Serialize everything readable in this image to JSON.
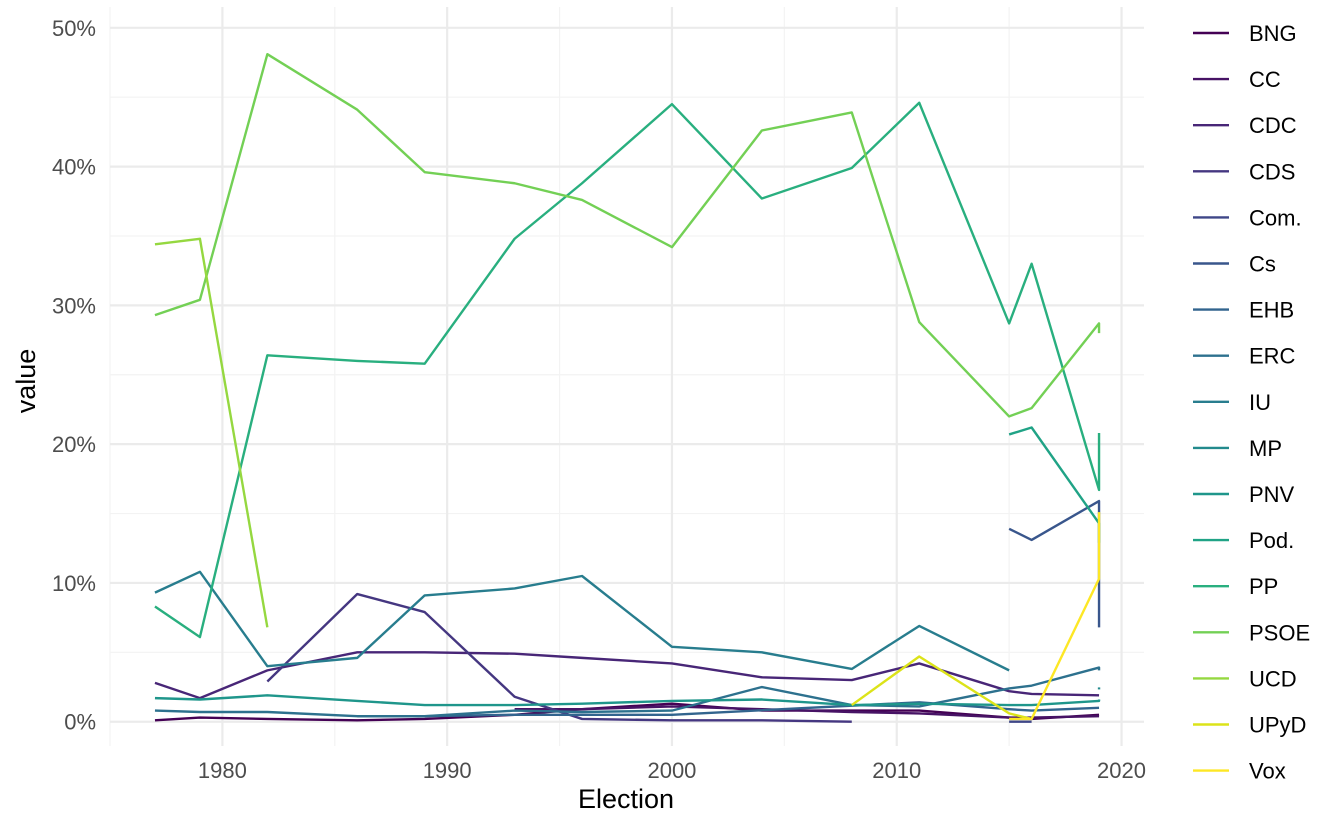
{
  "chart_data": {
    "type": "line",
    "title": "",
    "xlabel": "Election",
    "ylabel": "value",
    "xlim": [
      1975,
      2021
    ],
    "ylim": [
      0,
      50
    ],
    "x_ticks": [
      1980,
      1990,
      2000,
      2010,
      2020
    ],
    "y_ticks": [
      0,
      10,
      20,
      30,
      40,
      50
    ],
    "y_tick_format": "percent",
    "grid": true,
    "legend": "right",
    "series": [
      {
        "name": "BNG",
        "color": "#440154",
        "points": [
          [
            1977,
            0.1
          ],
          [
            1979,
            0.3
          ],
          [
            1982,
            0.2
          ],
          [
            1986,
            0.1
          ],
          [
            1989,
            0.2
          ],
          [
            1993,
            0.5
          ],
          [
            1996,
            0.9
          ],
          [
            2000,
            1.3
          ],
          [
            2004,
            0.8
          ],
          [
            2008,
            0.8
          ],
          [
            2011,
            0.8
          ],
          [
            2015,
            0.3
          ],
          [
            2016,
            0.2
          ],
          [
            2019,
            0.5
          ]
        ]
      },
      {
        "name": "CC",
        "color": "#471365",
        "points": [
          [
            1993,
            0.9
          ],
          [
            1996,
            0.9
          ],
          [
            2000,
            1.1
          ],
          [
            2004,
            0.9
          ],
          [
            2008,
            0.7
          ],
          [
            2011,
            0.6
          ],
          [
            2015,
            0.3
          ],
          [
            2016,
            0.3
          ],
          [
            2019,
            0.4
          ]
        ]
      },
      {
        "name": "CDC",
        "color": "#482677",
        "points": [
          [
            1977,
            2.8
          ],
          [
            1979,
            1.7
          ],
          [
            1982,
            3.7
          ],
          [
            1986,
            5.0
          ],
          [
            1989,
            5.0
          ],
          [
            1993,
            4.9
          ],
          [
            1996,
            4.6
          ],
          [
            2000,
            4.2
          ],
          [
            2004,
            3.2
          ],
          [
            2008,
            3.0
          ],
          [
            2011,
            4.2
          ],
          [
            2015,
            2.2
          ],
          [
            2016,
            2.0
          ],
          [
            2019,
            1.9
          ]
        ]
      },
      {
        "name": "CDS",
        "color": "#453781",
        "points": [
          [
            1982,
            2.9
          ],
          [
            1986,
            9.2
          ],
          [
            1989,
            7.9
          ],
          [
            1993,
            1.8
          ],
          [
            1996,
            0.2
          ],
          [
            2000,
            0.1
          ],
          [
            2004,
            0.1
          ],
          [
            2008,
            0.0
          ]
        ]
      },
      {
        "name": "Com.",
        "color": "#3F4788",
        "points": [
          [
            2015,
            0.0
          ],
          [
            2016,
            0.0
          ]
        ]
      },
      {
        "name": "Cs",
        "color": "#39568C",
        "points": [
          [
            2015,
            13.9
          ],
          [
            2016,
            13.1
          ],
          [
            2019,
            15.9
          ],
          [
            2019,
            6.8
          ]
        ]
      },
      {
        "name": "EHB",
        "color": "#32648E",
        "points": [
          [
            1986,
            0.4
          ],
          [
            1989,
            0.4
          ],
          [
            1993,
            0.5
          ],
          [
            2000,
            0.5
          ],
          [
            2011,
            1.4
          ],
          [
            2015,
            0.9
          ],
          [
            2016,
            0.8
          ],
          [
            2019,
            1.0
          ]
        ]
      },
      {
        "name": "ERC",
        "color": "#2D718E",
        "points": [
          [
            1977,
            0.8
          ],
          [
            1979,
            0.7
          ],
          [
            1982,
            0.7
          ],
          [
            1986,
            0.4
          ],
          [
            1989,
            0.4
          ],
          [
            1993,
            0.8
          ],
          [
            1996,
            0.7
          ],
          [
            2000,
            0.8
          ],
          [
            2004,
            2.5
          ],
          [
            2008,
            1.2
          ],
          [
            2011,
            1.1
          ],
          [
            2015,
            2.4
          ],
          [
            2016,
            2.6
          ],
          [
            2019,
            3.9
          ],
          [
            2019,
            3.7
          ]
        ]
      },
      {
        "name": "IU",
        "color": "#287D8E",
        "points": [
          [
            1977,
            9.3
          ],
          [
            1979,
            10.8
          ],
          [
            1982,
            4.0
          ],
          [
            1986,
            4.6
          ],
          [
            1989,
            9.1
          ],
          [
            1993,
            9.6
          ],
          [
            1996,
            10.5
          ],
          [
            2000,
            5.4
          ],
          [
            2004,
            5.0
          ],
          [
            2008,
            3.8
          ],
          [
            2011,
            6.9
          ],
          [
            2015,
            3.7
          ]
        ]
      },
      {
        "name": "MP",
        "color": "#238A8D",
        "points": [
          [
            2019,
            2.4
          ]
        ]
      },
      {
        "name": "PNV",
        "color": "#1F968B",
        "points": [
          [
            1977,
            1.7
          ],
          [
            1979,
            1.6
          ],
          [
            1982,
            1.9
          ],
          [
            1986,
            1.5
          ],
          [
            1989,
            1.2
          ],
          [
            1993,
            1.2
          ],
          [
            1996,
            1.3
          ],
          [
            2000,
            1.5
          ],
          [
            2004,
            1.6
          ],
          [
            2008,
            1.2
          ],
          [
            2011,
            1.3
          ],
          [
            2015,
            1.2
          ],
          [
            2016,
            1.2
          ],
          [
            2019,
            1.5
          ],
          [
            2019,
            1.6
          ]
        ]
      },
      {
        "name": "Pod.",
        "color": "#20A386",
        "points": [
          [
            2015,
            20.7
          ],
          [
            2016,
            21.2
          ],
          [
            2019,
            14.3
          ],
          [
            2019,
            12.9
          ]
        ]
      },
      {
        "name": "PP",
        "color": "#29AF7F",
        "points": [
          [
            1977,
            8.3
          ],
          [
            1979,
            6.1
          ],
          [
            1982,
            26.4
          ],
          [
            1986,
            26.0
          ],
          [
            1989,
            25.8
          ],
          [
            1993,
            34.8
          ],
          [
            1996,
            38.8
          ],
          [
            2000,
            44.5
          ],
          [
            2004,
            37.7
          ],
          [
            2008,
            39.9
          ],
          [
            2011,
            44.6
          ],
          [
            2015,
            28.7
          ],
          [
            2016,
            33.0
          ],
          [
            2019,
            16.7
          ],
          [
            2019,
            20.8
          ]
        ]
      },
      {
        "name": "PSOE",
        "color": "#73D055",
        "points": [
          [
            1977,
            29.3
          ],
          [
            1979,
            30.4
          ],
          [
            1982,
            48.1
          ],
          [
            1986,
            44.1
          ],
          [
            1989,
            39.6
          ],
          [
            1993,
            38.8
          ],
          [
            1996,
            37.6
          ],
          [
            2000,
            34.2
          ],
          [
            2004,
            42.6
          ],
          [
            2008,
            43.9
          ],
          [
            2011,
            28.8
          ],
          [
            2015,
            22.0
          ],
          [
            2016,
            22.6
          ],
          [
            2019,
            28.7
          ],
          [
            2019,
            28.0
          ]
        ]
      },
      {
        "name": "UCD",
        "color": "#95D840",
        "points": [
          [
            1977,
            34.4
          ],
          [
            1979,
            34.8
          ],
          [
            1982,
            6.8
          ]
        ]
      },
      {
        "name": "UPyD",
        "color": "#DCE319",
        "points": [
          [
            2008,
            1.2
          ],
          [
            2011,
            4.7
          ],
          [
            2015,
            0.6
          ],
          [
            2016,
            0.2
          ]
        ]
      },
      {
        "name": "Vox",
        "color": "#FDE725",
        "points": [
          [
            2015,
            0.2
          ],
          [
            2016,
            0.2
          ],
          [
            2019,
            10.3
          ],
          [
            2019,
            15.1
          ]
        ]
      }
    ]
  }
}
